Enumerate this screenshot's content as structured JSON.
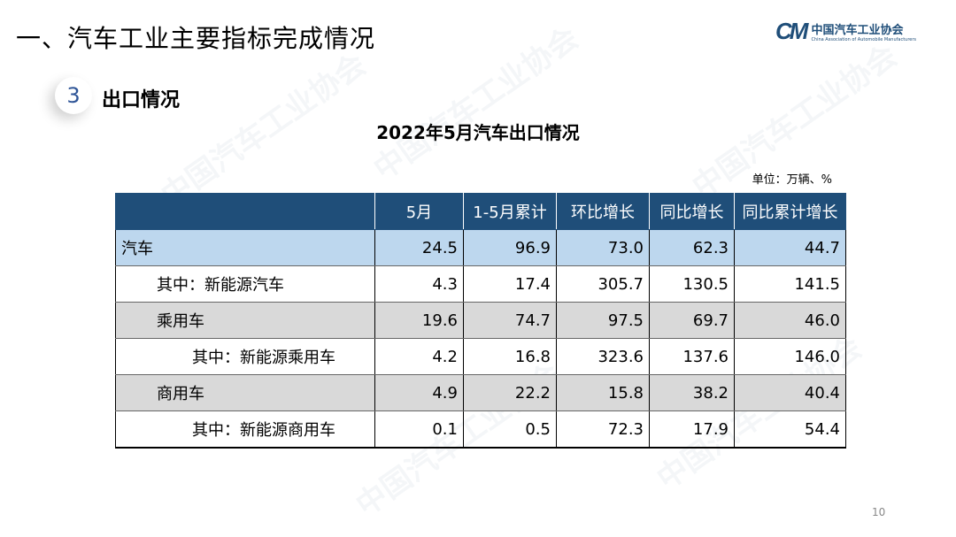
{
  "header": {
    "title": "一、汽车工业主要指标完成情况"
  },
  "logo": {
    "mark": "CM",
    "name_cn": "中国汽车工业协会",
    "name_en": "China Association of Automobile Manufacturers"
  },
  "section": {
    "number": "3",
    "title": "出口情况"
  },
  "table": {
    "title": "2022年5月汽车出口情况",
    "unit": "单位：万辆、%",
    "columns": [
      "",
      "5月",
      "1-5月累计",
      "环比增长",
      "同比增长",
      "同比累计增长"
    ],
    "rows": [
      {
        "label": "汽车",
        "values": [
          "24.5",
          "96.9",
          "73.0",
          "62.3",
          "44.7"
        ]
      },
      {
        "label": "其中：新能源汽车",
        "values": [
          "4.3",
          "17.4",
          "305.7",
          "130.5",
          "141.5"
        ]
      },
      {
        "label": "乘用车",
        "values": [
          "19.6",
          "74.7",
          "97.5",
          "69.7",
          "46.0"
        ]
      },
      {
        "label": "其中：新能源乘用车",
        "values": [
          "4.2",
          "16.8",
          "323.6",
          "137.6",
          "146.0"
        ]
      },
      {
        "label": "商用车",
        "values": [
          "4.9",
          "22.2",
          "15.8",
          "38.2",
          "40.4"
        ]
      },
      {
        "label": "其中：新能源商用车",
        "values": [
          "0.1",
          "0.5",
          "72.3",
          "17.9",
          "54.4"
        ]
      }
    ]
  },
  "page_number": "10",
  "colors": {
    "header_bg": "#1f4e79",
    "highlight_row": "#bdd7ee",
    "gray_row": "#d9d9d9"
  }
}
